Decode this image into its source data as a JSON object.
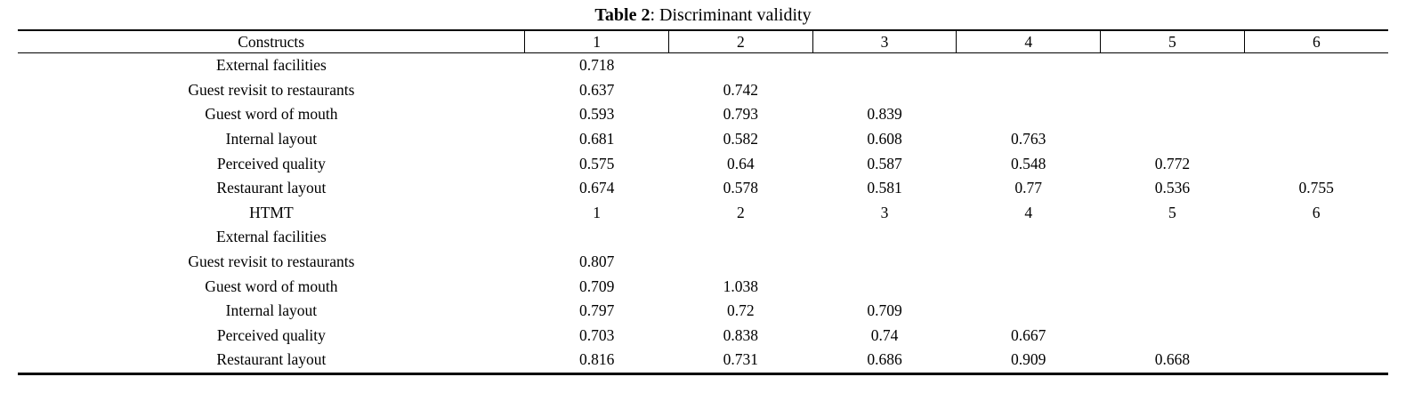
{
  "page": {
    "title_bold": "Table 2",
    "title_rest": ": Discriminant validity"
  },
  "chart_data": {
    "type": "table",
    "title": "Table 2: Discriminant validity",
    "headers": [
      "Constructs",
      "1",
      "2",
      "3",
      "4",
      "5",
      "6"
    ],
    "rows": [
      [
        "External facilities",
        "0.718",
        "",
        "",
        "",
        "",
        ""
      ],
      [
        "Guest revisit to restaurants",
        "0.637",
        "0.742",
        "",
        "",
        "",
        ""
      ],
      [
        "Guest word of mouth",
        "0.593",
        "0.793",
        "0.839",
        "",
        "",
        ""
      ],
      [
        "Internal layout",
        "0.681",
        "0.582",
        "0.608",
        "0.763",
        "",
        ""
      ],
      [
        "Perceived quality",
        "0.575",
        "0.64",
        "0.587",
        "0.548",
        "0.772",
        ""
      ],
      [
        "Restaurant layout",
        "0.674",
        "0.578",
        "0.581",
        "0.77",
        "0.536",
        "0.755"
      ],
      [
        "HTMT",
        "1",
        "2",
        "3",
        "4",
        "5",
        "6"
      ],
      [
        "External facilities",
        "",
        "",
        "",
        "",
        "",
        ""
      ],
      [
        "Guest revisit to restaurants",
        "0.807",
        "",
        "",
        "",
        "",
        ""
      ],
      [
        "Guest word of mouth",
        "0.709",
        "1.038",
        "",
        "",
        "",
        ""
      ],
      [
        "Internal layout",
        "0.797",
        "0.72",
        "0.709",
        "",
        "",
        ""
      ],
      [
        "Perceived quality",
        "0.703",
        "0.838",
        "0.74",
        "0.667",
        "",
        ""
      ],
      [
        "Restaurant layout",
        "0.816",
        "0.731",
        "0.686",
        "0.909",
        "0.668",
        ""
      ]
    ]
  },
  "table": {
    "headers": [
      "Constructs",
      "1",
      "2",
      "3",
      "4",
      "5",
      "6"
    ],
    "rows": [
      [
        "External facilities",
        "0.718",
        "",
        "",
        "",
        "",
        ""
      ],
      [
        "Guest revisit to restaurants",
        "0.637",
        "0.742",
        "",
        "",
        "",
        ""
      ],
      [
        "Guest word of mouth",
        "0.593",
        "0.793",
        "0.839",
        "",
        "",
        ""
      ],
      [
        "Internal layout",
        "0.681",
        "0.582",
        "0.608",
        "0.763",
        "",
        ""
      ],
      [
        "Perceived quality",
        "0.575",
        "0.64",
        "0.587",
        "0.548",
        "0.772",
        ""
      ],
      [
        "Restaurant layout",
        "0.674",
        "0.578",
        "0.581",
        "0.77",
        "0.536",
        "0.755"
      ],
      [
        "HTMT",
        "1",
        "2",
        "3",
        "4",
        "5",
        "6"
      ],
      [
        "External facilities",
        "",
        "",
        "",
        "",
        "",
        ""
      ],
      [
        "Guest revisit to restaurants",
        "0.807",
        "",
        "",
        "",
        "",
        ""
      ],
      [
        "Guest word of mouth",
        "0.709",
        "1.038",
        "",
        "",
        "",
        ""
      ],
      [
        "Internal layout",
        "0.797",
        "0.72",
        "0.709",
        "",
        "",
        ""
      ],
      [
        "Perceived quality",
        "0.703",
        "0.838",
        "0.74",
        "0.667",
        "",
        ""
      ],
      [
        "Restaurant layout",
        "0.816",
        "0.731",
        "0.686",
        "0.909",
        "0.668",
        ""
      ]
    ]
  }
}
